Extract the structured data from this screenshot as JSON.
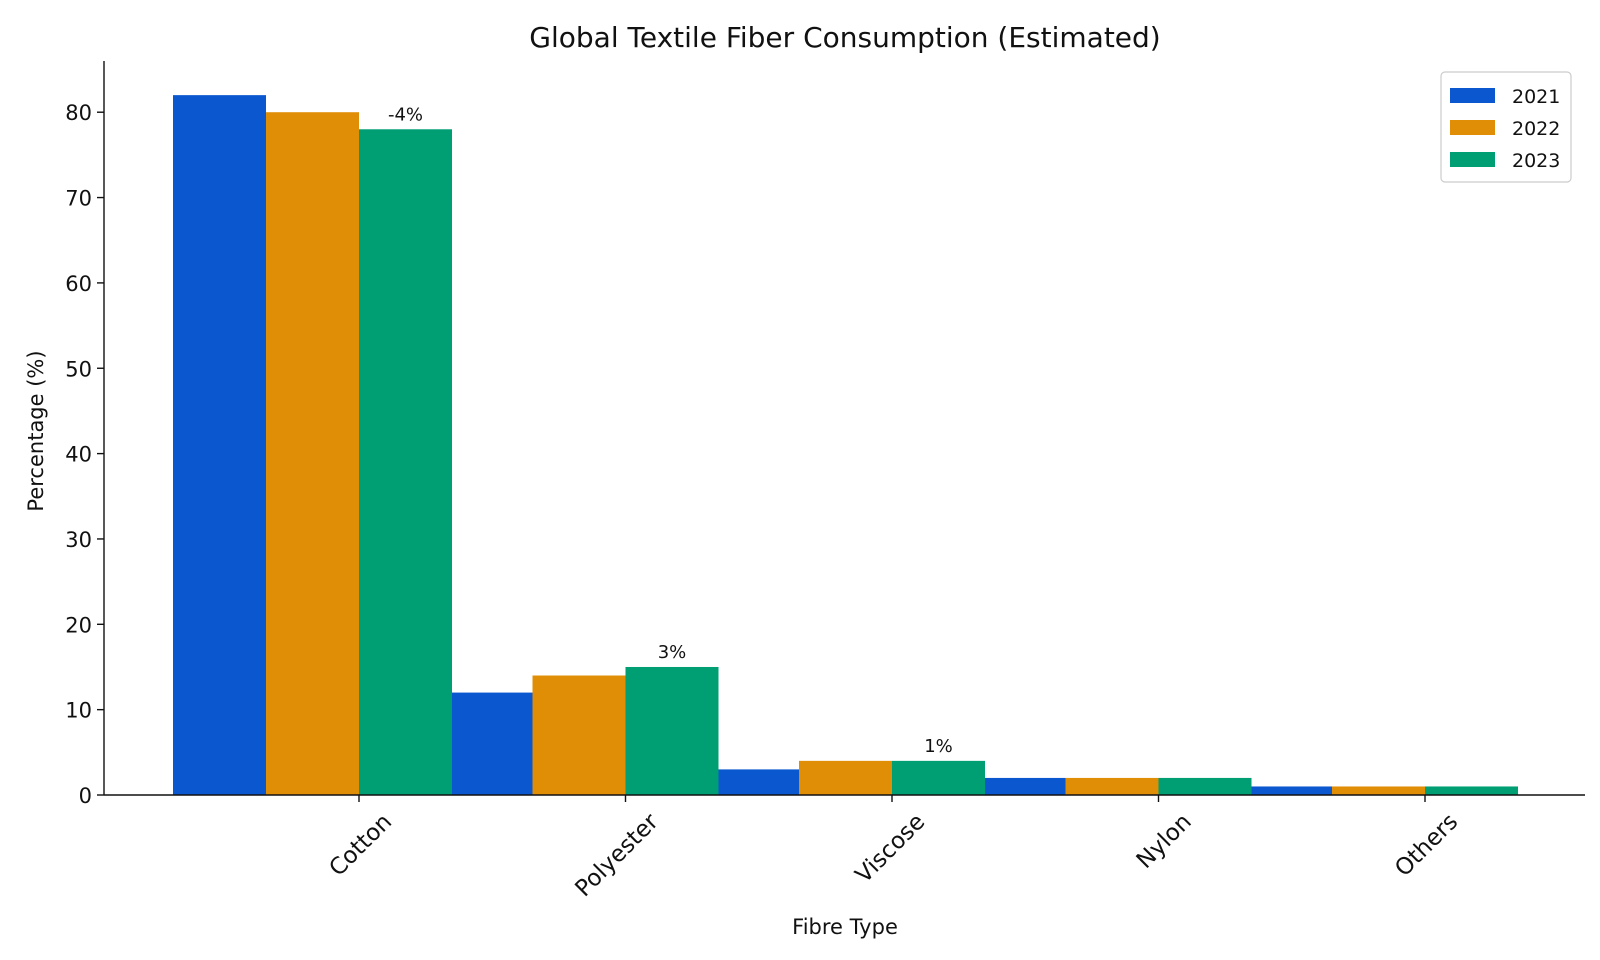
{
  "chart_data": {
    "type": "bar",
    "title": "Global Textile Fiber Consumption (Estimated)",
    "xlabel": "Fibre Type",
    "ylabel": "Percentage (%)",
    "categories": [
      "Cotton",
      "Polyester",
      "Viscose",
      "Nylon",
      "Others"
    ],
    "series": [
      {
        "name": "2021",
        "color": "#0b57d0",
        "values": [
          82,
          12,
          3,
          2,
          1
        ]
      },
      {
        "name": "2022",
        "color": "#df8e06",
        "values": [
          80,
          14,
          4,
          2,
          1
        ]
      },
      {
        "name": "2023",
        "color": "#009e73",
        "values": [
          78,
          15,
          4,
          2,
          1
        ]
      }
    ],
    "ylim": [
      0,
      86
    ],
    "yticks": [
      0,
      10,
      20,
      30,
      40,
      50,
      60,
      70,
      80
    ],
    "x_tick_rotation_deg": -45,
    "legend_position": "top-right",
    "grid": false,
    "annotations": [
      {
        "category": "Cotton",
        "series": "2023",
        "text": "-4%"
      },
      {
        "category": "Polyester",
        "series": "2023",
        "text": "3%"
      },
      {
        "category": "Viscose",
        "series": "2023",
        "text": "1%"
      }
    ]
  }
}
